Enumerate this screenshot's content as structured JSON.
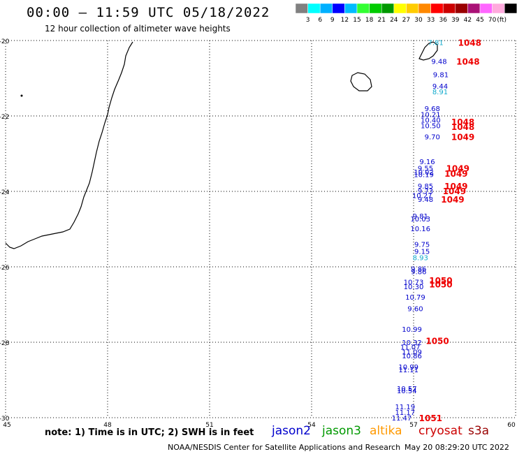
{
  "header": {
    "title": "00:00 – 11:59 UTC 05/18/2022",
    "subtitle": "12 hour collection of altimeter wave heights"
  },
  "legend": {
    "colors": [
      "#808080",
      "#00ffff",
      "#00b0ff",
      "#0000ff",
      "#00bbff",
      "#33ff33",
      "#00cc00",
      "#009900",
      "#ffff00",
      "#ffcc00",
      "#ff8800",
      "#ff0000",
      "#cc0000",
      "#990000",
      "#aa1177",
      "#ff66ff",
      "#ffaadd",
      "#000000"
    ],
    "labels": [
      "3",
      "6",
      "9",
      "12",
      "15",
      "18",
      "21",
      "24",
      "27",
      "30",
      "33",
      "36",
      "39",
      "42",
      "45",
      "70"
    ],
    "unit": "(ft)"
  },
  "axes": {
    "lat_labels": [
      "-20",
      "-22",
      "-24",
      "-26",
      "-28",
      "-30"
    ],
    "lat_values": [
      -20,
      -22,
      -24,
      -26,
      -28,
      -30
    ],
    "lon_labels": [
      "45",
      "48",
      "51",
      "54",
      "57",
      "60"
    ],
    "lon_values": [
      45,
      48,
      51,
      54,
      57,
      60
    ]
  },
  "wave_heights": [
    {
      "lon": 57.65,
      "lat": -20.05,
      "text": "7.81",
      "color": "#11aacc"
    },
    {
      "lon": 57.75,
      "lat": -20.55,
      "text": "9.48",
      "color": "#0000cc"
    },
    {
      "lon": 57.8,
      "lat": -20.9,
      "text": "9.81",
      "color": "#0000cc"
    },
    {
      "lon": 57.78,
      "lat": -21.2,
      "text": "9.44",
      "color": "#0000cc"
    },
    {
      "lon": 57.78,
      "lat": -21.35,
      "text": "8.91",
      "color": "#11aacc"
    },
    {
      "lon": 57.55,
      "lat": -21.8,
      "text": "9.68",
      "color": "#0000cc"
    },
    {
      "lon": 57.5,
      "lat": -21.95,
      "text": "10.21",
      "color": "#0000cc"
    },
    {
      "lon": 57.5,
      "lat": -22.1,
      "text": "10.40",
      "color": "#0000cc"
    },
    {
      "lon": 57.5,
      "lat": -22.25,
      "text": "10.50",
      "color": "#0000cc"
    },
    {
      "lon": 57.55,
      "lat": -22.55,
      "text": "9.70",
      "color": "#0000cc"
    },
    {
      "lon": 57.4,
      "lat": -23.2,
      "text": "9.16",
      "color": "#0000cc"
    },
    {
      "lon": 57.35,
      "lat": -23.38,
      "text": "9.55",
      "color": "#0000cc"
    },
    {
      "lon": 57.3,
      "lat": -23.48,
      "text": "10.02",
      "color": "#0000cc"
    },
    {
      "lon": 57.3,
      "lat": -23.55,
      "text": "10.19",
      "color": "#0000cc"
    },
    {
      "lon": 57.35,
      "lat": -23.85,
      "text": "9.85",
      "color": "#0000cc"
    },
    {
      "lon": 57.35,
      "lat": -23.98,
      "text": "9.73",
      "color": "#0000cc"
    },
    {
      "lon": 57.25,
      "lat": -24.1,
      "text": "10.27",
      "color": "#0000cc"
    },
    {
      "lon": 57.35,
      "lat": -24.2,
      "text": "9.48",
      "color": "#0000cc"
    },
    {
      "lon": 57.2,
      "lat": -24.65,
      "text": "9.81",
      "color": "#0000cc"
    },
    {
      "lon": 57.2,
      "lat": -24.72,
      "text": "10.03",
      "color": "#0000cc"
    },
    {
      "lon": 57.2,
      "lat": -24.98,
      "text": "10.16",
      "color": "#0000cc"
    },
    {
      "lon": 57.25,
      "lat": -25.4,
      "text": "9.75",
      "color": "#0000cc"
    },
    {
      "lon": 57.25,
      "lat": -25.58,
      "text": "9.15",
      "color": "#0000cc"
    },
    {
      "lon": 57.2,
      "lat": -25.75,
      "text": "8.93",
      "color": "#11aacc"
    },
    {
      "lon": 57.15,
      "lat": -26.05,
      "text": "9.86",
      "color": "#0000cc"
    },
    {
      "lon": 57.15,
      "lat": -26.12,
      "text": "9.86",
      "color": "#0000cc"
    },
    {
      "lon": 57.0,
      "lat": -26.4,
      "text": "10.73",
      "color": "#0000cc"
    },
    {
      "lon": 57.0,
      "lat": -26.52,
      "text": "10.30",
      "color": "#0000cc"
    },
    {
      "lon": 57.05,
      "lat": -26.8,
      "text": "10.79",
      "color": "#0000cc"
    },
    {
      "lon": 57.05,
      "lat": -27.1,
      "text": "9.60",
      "color": "#0000cc"
    },
    {
      "lon": 56.95,
      "lat": -27.65,
      "text": "10.99",
      "color": "#0000cc"
    },
    {
      "lon": 56.95,
      "lat": -28.0,
      "text": "10.32",
      "color": "#0000cc"
    },
    {
      "lon": 56.9,
      "lat": -28.12,
      "text": "11.07",
      "color": "#0000cc"
    },
    {
      "lon": 56.95,
      "lat": -28.25,
      "text": "11.09",
      "color": "#0000cc"
    },
    {
      "lon": 56.95,
      "lat": -28.35,
      "text": "10.86",
      "color": "#0000cc"
    },
    {
      "lon": 56.85,
      "lat": -28.65,
      "text": "10.99",
      "color": "#0000cc"
    },
    {
      "lon": 56.85,
      "lat": -28.72,
      "text": "11.11",
      "color": "#0000cc"
    },
    {
      "lon": 56.8,
      "lat": -29.22,
      "text": "10.57",
      "color": "#0000cc"
    },
    {
      "lon": 56.8,
      "lat": -29.28,
      "text": "10.54",
      "color": "#0000cc"
    },
    {
      "lon": 56.75,
      "lat": -29.7,
      "text": "11.19",
      "color": "#0000cc"
    },
    {
      "lon": 56.75,
      "lat": -29.85,
      "text": "11.17",
      "color": "#0000cc"
    },
    {
      "lon": 56.65,
      "lat": -30.0,
      "text": "11.47",
      "color": "#0000cc"
    }
  ],
  "pressure_labels": [
    {
      "lon": 58.65,
      "lat": -20.05,
      "text": "1048"
    },
    {
      "lon": 58.6,
      "lat": -20.55,
      "text": "1048"
    },
    {
      "lon": 58.45,
      "lat": -22.15,
      "text": "1048"
    },
    {
      "lon": 58.45,
      "lat": -22.28,
      "text": "1048"
    },
    {
      "lon": 58.45,
      "lat": -22.55,
      "text": "1049"
    },
    {
      "lon": 58.3,
      "lat": -23.38,
      "text": "1049"
    },
    {
      "lon": 58.25,
      "lat": -23.52,
      "text": "1049"
    },
    {
      "lon": 58.25,
      "lat": -23.85,
      "text": "1049"
    },
    {
      "lon": 58.2,
      "lat": -23.98,
      "text": "1049"
    },
    {
      "lon": 58.15,
      "lat": -24.2,
      "text": "1049"
    },
    {
      "lon": 57.8,
      "lat": -26.35,
      "text": "1050"
    },
    {
      "lon": 57.8,
      "lat": -26.45,
      "text": "1050"
    },
    {
      "lon": 57.7,
      "lat": -27.95,
      "text": "1050"
    },
    {
      "lon": 57.5,
      "lat": -30.0,
      "text": "1051"
    }
  ],
  "note": "note: 1) Time is in UTC; 2) SWH is in feet",
  "satellites": [
    {
      "name": "jason2",
      "color": "#0000cc"
    },
    {
      "name": "jason3",
      "color": "#009900"
    },
    {
      "name": "altika",
      "color": "#ff9900"
    },
    {
      "name": "cryosat",
      "color": "#cc0000"
    },
    {
      "name": "s3a",
      "color": "#990000"
    }
  ],
  "footer": {
    "credit": "NOAA/NESDIS Center for Satellite Applications and Research",
    "timestamp": "May 20 08:29:20 UTC 2022"
  }
}
